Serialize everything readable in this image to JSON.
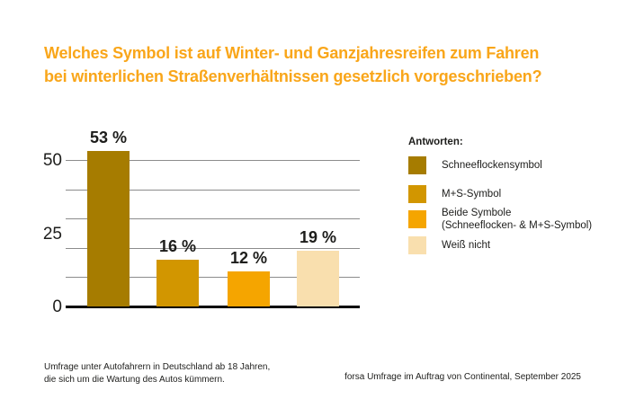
{
  "title": {
    "line1": "Welches Symbol ist auf Winter- und Ganzjahresreifen zum Fahren",
    "line2": "bei winterlichen Straßenverhältnissen gesetzlich vorgeschrieben?"
  },
  "colors": {
    "title": "#f9a61a",
    "grid": "#8c8c8c",
    "baseline": "#000000",
    "text": "#1d1d1b"
  },
  "chart_data": {
    "type": "bar",
    "categories": [
      "Schneeflockensymbol",
      "M+S-Symbol",
      "Beide Symbole (Schneeflocken- & M+S-Symbol)",
      "Weiß nicht"
    ],
    "values": [
      53,
      16,
      12,
      19
    ],
    "value_labels": [
      "53 %",
      "16 %",
      "12 %",
      "19 %"
    ],
    "bar_colors": [
      "#a67c00",
      "#d29600",
      "#f5a500",
      "#f9dfae"
    ],
    "title": "",
    "xlabel": "",
    "ylabel": "",
    "ylim": [
      0,
      50
    ],
    "yticks": [
      0,
      25,
      50
    ],
    "gridlines": [
      10,
      20,
      30,
      40,
      50
    ],
    "grid_on": true,
    "legend_position": "right"
  },
  "legend": {
    "title": "Antworten:",
    "items": [
      {
        "label": "Schneeflockensymbol",
        "label2": "",
        "color": "#a67c00"
      },
      {
        "label": "M+S-Symbol",
        "label2": "",
        "color": "#d29600"
      },
      {
        "label": "Beide Symbole",
        "label2": "(Schneeflocken- & M+S-Symbol)",
        "color": "#f5a500"
      },
      {
        "label": "Weiß nicht",
        "label2": "",
        "color": "#f9dfae"
      }
    ]
  },
  "footnotes": {
    "left_line1": "Umfrage unter Autofahrern in Deutschland ab 18 Jahren,",
    "left_line2": "die sich um die Wartung des Autos kümmern.",
    "right": "forsa Umfrage im Auftrag von Continental, September 2025"
  }
}
